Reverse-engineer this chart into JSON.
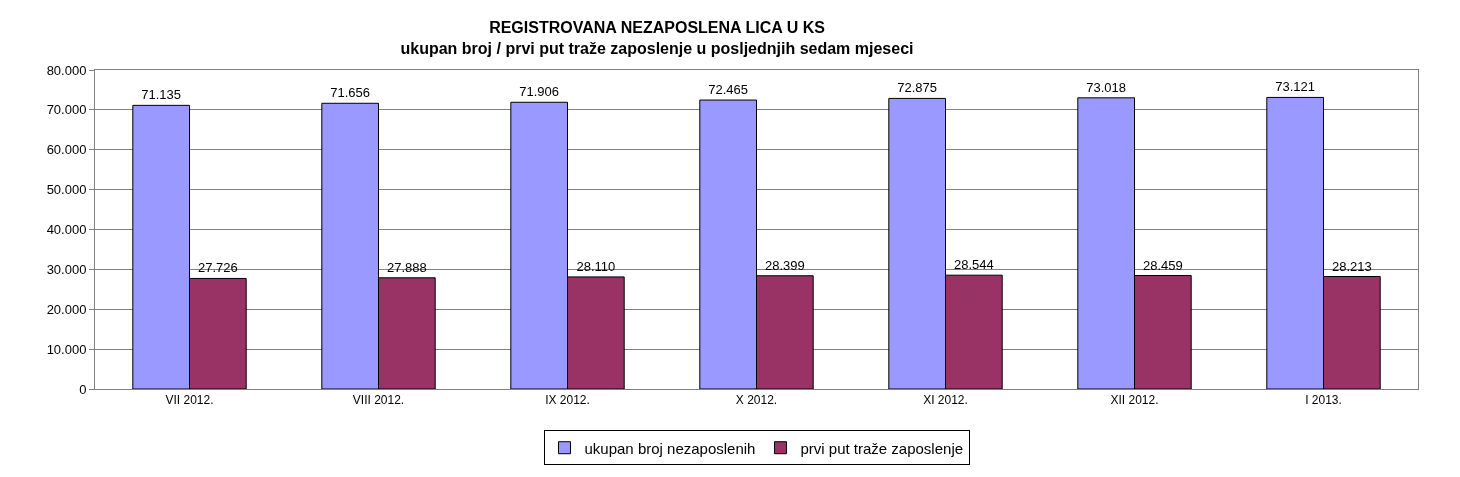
{
  "chart_data": {
    "type": "bar",
    "title": "REGISTROVANA NEZAPOSLENA LICA U KS",
    "subtitle": "ukupan broj / prvi put traže zaposlenje u posljednjih sedam mjeseci",
    "categories": [
      "VII 2012.",
      "VIII 2012.",
      "IX 2012.",
      "X 2012.",
      "XI 2012.",
      "XII 2012.",
      "I 2013."
    ],
    "series": [
      {
        "name": "ukupan broj nezaposlenih",
        "color": "#9999ff",
        "values": [
          71135,
          71656,
          71906,
          72465,
          72875,
          73018,
          73121
        ],
        "value_labels": [
          "71.135",
          "71.656",
          "71.906",
          "72.465",
          "72.875",
          "73.018",
          "73.121"
        ]
      },
      {
        "name": "prvi put traže zaposlenje",
        "color": "#993366",
        "values": [
          27726,
          27888,
          28110,
          28399,
          28544,
          28459,
          28213
        ],
        "value_labels": [
          "27.726",
          "27.888",
          "28.110",
          "28.399",
          "28.544",
          "28.459",
          "28.213"
        ]
      }
    ],
    "ylim": [
      0,
      80000
    ],
    "yticks": [
      {
        "value": 0,
        "label": "0"
      },
      {
        "value": 10000,
        "label": "10.000"
      },
      {
        "value": 20000,
        "label": "20.000"
      },
      {
        "value": 30000,
        "label": "30.000"
      },
      {
        "value": 40000,
        "label": "40.000"
      },
      {
        "value": 50000,
        "label": "50.000"
      },
      {
        "value": 60000,
        "label": "60.000"
      },
      {
        "value": 70000,
        "label": "70.000"
      },
      {
        "value": 80000,
        "label": "80.000"
      }
    ],
    "grid": "y",
    "legend": "bottom"
  }
}
